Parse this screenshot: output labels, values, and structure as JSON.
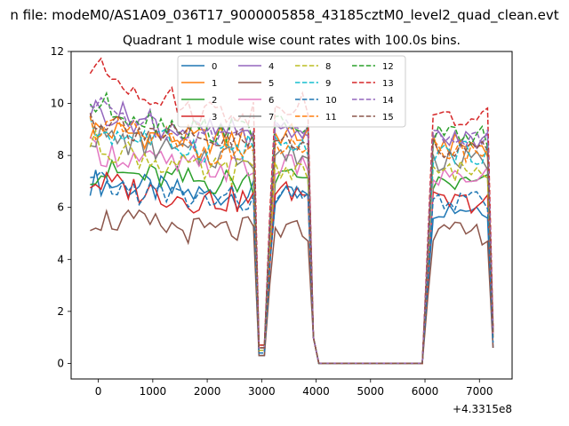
{
  "suptitle": "n file: modeM0/AS1A09_036T17_9000005858_43185cztM0_level2_quad_clean.evt",
  "chart_data": {
    "type": "line",
    "title": "Quadrant 1 module wise count rates with 100.0s bins.",
    "xlabel": "",
    "ylabel": "",
    "offset_text": "+4.3315e8",
    "xlim": [
      -500,
      7600
    ],
    "ylim": [
      -0.6,
      12
    ],
    "xticks": [
      0,
      1000,
      2000,
      3000,
      4000,
      5000,
      6000,
      7000
    ],
    "xtick_labels": [
      "0",
      "1000",
      "2000",
      "3000",
      "4000",
      "5000",
      "6000",
      "7000"
    ],
    "yticks": [
      0,
      2,
      4,
      6,
      8,
      10,
      12
    ],
    "ytick_labels": [
      "0",
      "2",
      "4",
      "6",
      "8",
      "10",
      "12"
    ],
    "grid": false,
    "legend": {
      "placement": "top-center",
      "ncol": 4
    },
    "x": [
      -150,
      -50,
      50,
      150,
      250,
      350,
      450,
      550,
      650,
      750,
      850,
      950,
      1050,
      1150,
      1250,
      1350,
      1450,
      1550,
      1650,
      1750,
      1850,
      1950,
      2050,
      2150,
      2250,
      2350,
      2450,
      2550,
      2650,
      2750,
      2850,
      2950,
      3050,
      3150,
      3250,
      3350,
      3450,
      3550,
      3650,
      3750,
      3850,
      3950,
      4050,
      4150,
      4250,
      4350,
      4450,
      4550,
      4650,
      4750,
      4850,
      4950,
      5050,
      5150,
      5250,
      5350,
      5450,
      5550,
      5650,
      5750,
      5850,
      5950,
      6050,
      6150,
      6250,
      6350,
      6450,
      6550,
      6650,
      6750,
      6850,
      6950,
      7050,
      7150,
      7250
    ],
    "series": [
      {
        "name": "0",
        "color": "#1f77b4",
        "dash": "solid",
        "base": 6.5,
        "peak": 6.4,
        "late": 6.0,
        "start": 7.0,
        "dip": 0.3
      },
      {
        "name": "1",
        "color": "#ff7f0e",
        "dash": "solid",
        "base": 8.6,
        "peak": 8.8,
        "late": 8.4,
        "start": 9.0,
        "dip": 0.6
      },
      {
        "name": "2",
        "color": "#2ca02c",
        "dash": "solid",
        "base": 7.0,
        "peak": 7.2,
        "late": 6.9,
        "start": 7.4,
        "dip": 0.5
      },
      {
        "name": "3",
        "color": "#d62728",
        "dash": "solid",
        "base": 6.3,
        "peak": 6.6,
        "late": 6.2,
        "start": 7.0,
        "dip": 0.5
      },
      {
        "name": "4",
        "color": "#9467bd",
        "dash": "solid",
        "base": 8.9,
        "peak": 8.9,
        "late": 8.6,
        "start": 9.8,
        "dip": 0.6
      },
      {
        "name": "5",
        "color": "#8c564b",
        "dash": "solid",
        "base": 5.1,
        "peak": 5.1,
        "late": 5.0,
        "start": 5.6,
        "dip": 0.3
      },
      {
        "name": "6",
        "color": "#e377c2",
        "dash": "solid",
        "base": 7.5,
        "peak": 7.6,
        "late": 7.2,
        "start": 8.2,
        "dip": 0.5
      },
      {
        "name": "7",
        "color": "#7f7f7f",
        "dash": "solid",
        "base": 8.0,
        "peak": 8.0,
        "late": 7.8,
        "start": 8.8,
        "dip": 0.6
      },
      {
        "name": "8",
        "color": "#bcbd22",
        "dash": "dashed",
        "base": 7.4,
        "peak": 7.5,
        "late": 7.4,
        "start": 8.5,
        "dip": 0.5
      },
      {
        "name": "9",
        "color": "#17becf",
        "dash": "dashed",
        "base": 8.3,
        "peak": 8.3,
        "late": 8.1,
        "start": 9.0,
        "dip": 0.6
      },
      {
        "name": "10",
        "color": "#1f77b4",
        "dash": "dashed",
        "base": 6.3,
        "peak": 6.4,
        "late": 6.2,
        "start": 6.9,
        "dip": 0.4
      },
      {
        "name": "11",
        "color": "#ff7f0e",
        "dash": "dashed",
        "base": 8.2,
        "peak": 8.3,
        "late": 8.2,
        "start": 9.2,
        "dip": 0.6
      },
      {
        "name": "12",
        "color": "#2ca02c",
        "dash": "dashed",
        "base": 9.0,
        "peak": 9.1,
        "late": 8.7,
        "start": 10.0,
        "dip": 0.7
      },
      {
        "name": "13",
        "color": "#d62728",
        "dash": "dashed",
        "base": 9.7,
        "peak": 10.0,
        "late": 9.4,
        "start": 11.4,
        "dip": 0.7
      },
      {
        "name": "14",
        "color": "#9467bd",
        "dash": "dashed",
        "base": 8.8,
        "peak": 9.0,
        "late": 8.7,
        "start": 9.9,
        "dip": 0.6
      },
      {
        "name": "15",
        "color": "#8c564b",
        "dash": "dashed",
        "base": 8.5,
        "peak": 8.6,
        "late": 8.3,
        "start": 9.5,
        "dip": 0.6
      }
    ]
  }
}
